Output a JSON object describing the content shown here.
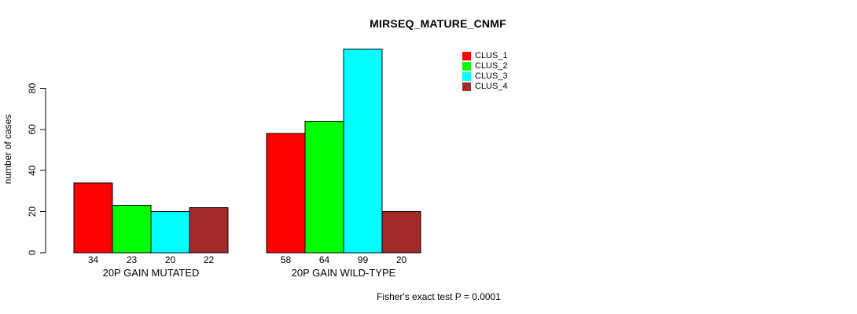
{
  "page": {
    "background": "#FFFFFF"
  },
  "chart_data": {
    "type": "bar",
    "title": "MIRSEQ_MATURE_CNMF",
    "ylabel": "number of cases",
    "xlabel": "",
    "categories": [
      "20P GAIN MUTATED",
      "20P GAIN WILD-TYPE"
    ],
    "series": [
      {
        "name": "CLUS_1",
        "color": "#FF0000",
        "values": [
          34,
          58
        ]
      },
      {
        "name": "CLUS_2",
        "color": "#00FF00",
        "values": [
          23,
          64
        ]
      },
      {
        "name": "CLUS_3",
        "color": "#00FFFF",
        "values": [
          20,
          99
        ]
      },
      {
        "name": "CLUS_4",
        "color": "#A52A2A",
        "values": [
          22,
          20
        ]
      }
    ],
    "yticks": [
      0,
      20,
      40,
      60,
      80
    ],
    "ylim": [
      0,
      100
    ],
    "grid": false,
    "bar_border_color": "#000000",
    "value_labels_shown": true,
    "legend_position": "top-right",
    "annotation": "Fisher's exact test P = 0.0001"
  }
}
